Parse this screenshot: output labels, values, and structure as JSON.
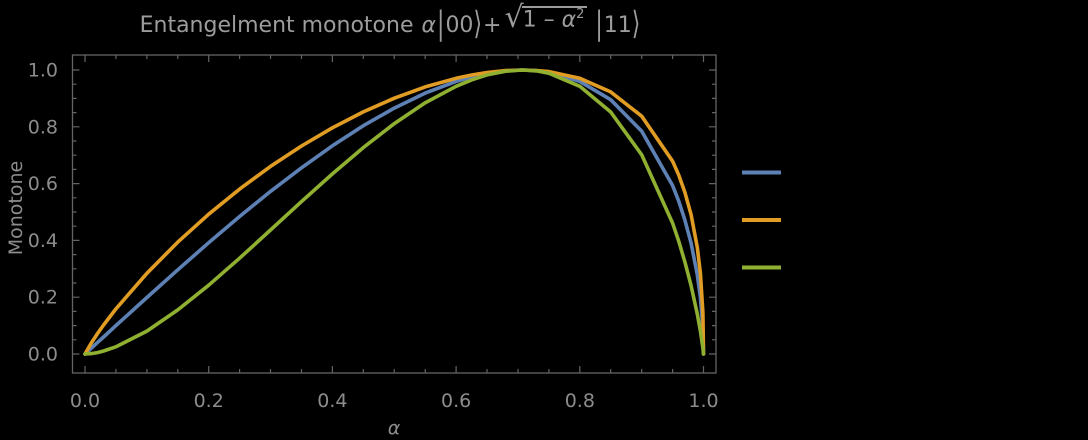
{
  "window": {
    "background": "#000000"
  },
  "title": {
    "text": "Entangelment monotone",
    "alpha": "α",
    "bar": "|",
    "ket_00": "00",
    "ket_11": "11",
    "rangle": "⟩",
    "plus": "+",
    "radical": "√",
    "radicand_pre": "1 – ",
    "radicand_var": "α",
    "radicand_exp": "2"
  },
  "chart_data": {
    "type": "line",
    "title": "Entangelment monotone α|00⟩+√(1-α²)|11⟩",
    "xlabel": "α",
    "ylabel": "Monotone",
    "xlim": [
      0,
      1
    ],
    "ylim": [
      0,
      1
    ],
    "grid": false,
    "frame": true,
    "x_tick_labels": [
      "0.0",
      "0.2",
      "0.4",
      "0.6",
      "0.8",
      "1.0"
    ],
    "y_tick_labels": [
      "0.0",
      "0.2",
      "0.4",
      "0.6",
      "0.8",
      "1.0"
    ],
    "x_ticks": [
      0,
      0.2,
      0.4,
      0.6,
      0.8,
      1.0
    ],
    "y_ticks": [
      0,
      0.2,
      0.4,
      0.6,
      0.8,
      1.0
    ],
    "minor_tick_step": 0.05,
    "frame_color": "#646464",
    "label_color": "#8c8c8c",
    "legend": {
      "position": "right-of-plot",
      "entries": [
        {
          "name": "blue-series-swatch",
          "color": "#5E81B5"
        },
        {
          "name": "orange-series-swatch",
          "color": "#E19C24"
        },
        {
          "name": "green-series-swatch",
          "color": "#8FB031"
        }
      ]
    },
    "x": [
      0,
      0.01,
      0.02,
      0.03,
      0.05,
      0.1,
      0.15,
      0.2,
      0.25,
      0.3,
      0.35,
      0.4,
      0.45,
      0.5,
      0.55,
      0.6,
      0.625,
      0.65,
      0.68,
      0.7071,
      0.73,
      0.75,
      0.8,
      0.85,
      0.9,
      0.95,
      0.96,
      0.97,
      0.98,
      0.99,
      0.995,
      0.999,
      1
    ],
    "series": [
      {
        "name": "blue-curve",
        "color": "#5E81B5",
        "values": [
          0,
          0.02,
          0.04,
          0.06,
          0.0999,
          0.199,
          0.2966,
          0.3919,
          0.4841,
          0.5724,
          0.6557,
          0.7332,
          0.8037,
          0.866,
          0.9187,
          0.96,
          0.9758,
          0.9879,
          0.9972,
          1,
          0.9978,
          0.9922,
          0.96,
          0.8955,
          0.7846,
          0.5933,
          0.5376,
          0.4716,
          0.39,
          0.2793,
          0.1988,
          0.0893,
          0
        ]
      },
      {
        "name": "orange-curve",
        "color": "#E19C24",
        "values": [
          0,
          0.0384,
          0.0714,
          0.102,
          0.1588,
          0.2842,
          0.394,
          0.4922,
          0.5808,
          0.6607,
          0.7325,
          0.7964,
          0.8526,
          0.9007,
          0.9404,
          0.9709,
          0.9824,
          0.9912,
          0.9979,
          1,
          0.9984,
          0.9943,
          0.9709,
          0.923,
          0.8375,
          0.679,
          0.6297,
          0.5691,
          0.4904,
          0.3753,
          0.284,
          0.1442,
          0
        ]
      },
      {
        "name": "green-curve",
        "color": "#8FB031",
        "values": [
          0,
          0.0015,
          0.0051,
          0.0104,
          0.0252,
          0.0808,
          0.1553,
          0.2423,
          0.3373,
          0.4365,
          0.5365,
          0.6343,
          0.7269,
          0.8113,
          0.8844,
          0.9427,
          0.9652,
          0.9826,
          0.9959,
          1,
          0.9969,
          0.9887,
          0.9427,
          0.852,
          0.7015,
          0.461,
          0.3965,
          0.3239,
          0.2405,
          0.1409,
          0.0806,
          0.0208,
          0
        ]
      }
    ]
  }
}
